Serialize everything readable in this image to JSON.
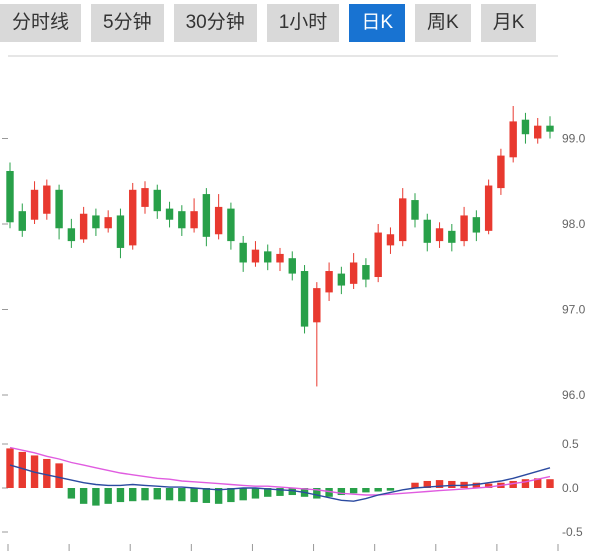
{
  "ui": {
    "accent_color": "#1873d2",
    "tab_background": "#d9d9d9",
    "tab_text_color": "#333333"
  },
  "tabs": {
    "items": [
      {
        "label": "分时线",
        "active": false
      },
      {
        "label": "5分钟",
        "active": false
      },
      {
        "label": "30分钟",
        "active": false
      },
      {
        "label": "1小时",
        "active": false
      },
      {
        "label": "日K",
        "active": true
      },
      {
        "label": "周K",
        "active": false
      },
      {
        "label": "月K",
        "active": false
      }
    ]
  },
  "chart_data": {
    "type": "candlestick",
    "title": "",
    "legend": "none",
    "grid": "ticks-only",
    "colors": {
      "up": "#e8392f",
      "down": "#28a049",
      "dif_line": "#2b4aa0",
      "dea_line": "#e05ce0",
      "axis_tick": "#999999",
      "border_line": "#cccccc",
      "label_text": "#666666"
    },
    "main_pane": {
      "y_axis_side": "right",
      "y_ticks": [
        {
          "label": "99.0",
          "value": 99.0
        },
        {
          "label": "98.0",
          "value": 98.0
        },
        {
          "label": "97.0",
          "value": 97.0
        },
        {
          "label": "96.0",
          "value": 96.0
        }
      ],
      "ylim": [
        95.6,
        99.96
      ],
      "candles_ohlc": [
        [
          98.62,
          98.72,
          97.95,
          98.02
        ],
        [
          98.15,
          98.24,
          97.85,
          97.92
        ],
        [
          98.05,
          98.5,
          98.0,
          98.4
        ],
        [
          98.12,
          98.52,
          98.05,
          98.45
        ],
        [
          98.4,
          98.46,
          97.82,
          97.95
        ],
        [
          97.95,
          98.06,
          97.72,
          97.8
        ],
        [
          97.82,
          98.2,
          97.78,
          98.12
        ],
        [
          98.1,
          98.18,
          97.86,
          97.95
        ],
        [
          97.95,
          98.16,
          97.9,
          98.08
        ],
        [
          98.1,
          98.18,
          97.6,
          97.72
        ],
        [
          97.75,
          98.48,
          97.7,
          98.4
        ],
        [
          98.2,
          98.5,
          98.12,
          98.42
        ],
        [
          98.4,
          98.46,
          98.06,
          98.15
        ],
        [
          98.18,
          98.26,
          97.96,
          98.05
        ],
        [
          98.15,
          98.22,
          97.86,
          97.95
        ],
        [
          97.95,
          98.3,
          97.9,
          98.15
        ],
        [
          98.35,
          98.42,
          97.74,
          97.85
        ],
        [
          97.88,
          98.35,
          97.82,
          98.2
        ],
        [
          98.18,
          98.25,
          97.7,
          97.8
        ],
        [
          97.78,
          97.86,
          97.44,
          97.55
        ],
        [
          97.55,
          97.8,
          97.5,
          97.7
        ],
        [
          97.68,
          97.76,
          97.46,
          97.55
        ],
        [
          97.55,
          97.72,
          97.45,
          97.65
        ],
        [
          97.6,
          97.68,
          97.34,
          97.42
        ],
        [
          97.45,
          97.52,
          96.72,
          96.8
        ],
        [
          96.85,
          97.32,
          96.1,
          97.25
        ],
        [
          97.2,
          97.55,
          97.1,
          97.45
        ],
        [
          97.42,
          97.5,
          97.18,
          97.28
        ],
        [
          97.3,
          97.66,
          97.24,
          97.55
        ],
        [
          97.52,
          97.6,
          97.26,
          97.35
        ],
        [
          97.38,
          98.0,
          97.32,
          97.9
        ],
        [
          97.75,
          97.96,
          97.65,
          97.88
        ],
        [
          97.8,
          98.42,
          97.74,
          98.3
        ],
        [
          98.28,
          98.36,
          97.96,
          98.05
        ],
        [
          98.05,
          98.12,
          97.68,
          97.78
        ],
        [
          97.8,
          98.02,
          97.72,
          97.95
        ],
        [
          97.92,
          98.0,
          97.68,
          97.78
        ],
        [
          97.8,
          98.2,
          97.74,
          98.1
        ],
        [
          98.08,
          98.16,
          97.8,
          97.9
        ],
        [
          97.92,
          98.52,
          97.88,
          98.45
        ],
        [
          98.42,
          98.88,
          98.34,
          98.8
        ],
        [
          98.78,
          99.38,
          98.72,
          99.2
        ],
        [
          99.22,
          99.3,
          98.94,
          99.05
        ],
        [
          99.0,
          99.24,
          98.94,
          99.15
        ],
        [
          99.15,
          99.26,
          99.0,
          99.08
        ]
      ]
    },
    "macd_pane": {
      "y_axis_side": "right",
      "y_ticks": [
        {
          "label": "0.5",
          "value": 0.5
        },
        {
          "label": "0.0",
          "value": 0.0
        },
        {
          "label": "-0.5",
          "value": -0.5
        }
      ],
      "ylim": [
        -0.5,
        0.5
      ],
      "histogram": [
        0.45,
        0.41,
        0.37,
        0.33,
        0.28,
        -0.12,
        -0.18,
        -0.2,
        -0.18,
        -0.16,
        -0.15,
        -0.14,
        -0.13,
        -0.14,
        -0.15,
        -0.16,
        -0.17,
        -0.18,
        -0.16,
        -0.14,
        -0.12,
        -0.1,
        -0.09,
        -0.08,
        -0.1,
        -0.12,
        -0.1,
        -0.08,
        -0.06,
        -0.05,
        -0.04,
        -0.03,
        0.0,
        0.06,
        0.08,
        0.09,
        0.08,
        0.07,
        0.06,
        0.05,
        0.06,
        0.08,
        0.1,
        0.11,
        0.1
      ],
      "dif_line": [
        0.26,
        0.22,
        0.18,
        0.15,
        0.12,
        0.09,
        0.06,
        0.04,
        0.03,
        0.03,
        0.04,
        0.03,
        0.02,
        0.01,
        0.01,
        0.0,
        -0.01,
        -0.02,
        -0.01,
        0.0,
        0.0,
        -0.01,
        -0.02,
        -0.03,
        -0.05,
        -0.08,
        -0.11,
        -0.14,
        -0.15,
        -0.12,
        -0.08,
        -0.05,
        -0.02,
        0.0,
        0.01,
        0.02,
        0.03,
        0.03,
        0.04,
        0.06,
        0.08,
        0.11,
        0.15,
        0.19,
        0.23
      ],
      "dea_line": [
        0.46,
        0.43,
        0.4,
        0.36,
        0.33,
        0.29,
        0.26,
        0.23,
        0.2,
        0.17,
        0.15,
        0.13,
        0.11,
        0.1,
        0.08,
        0.07,
        0.06,
        0.05,
        0.04,
        0.03,
        0.02,
        0.02,
        0.01,
        0.0,
        -0.01,
        -0.02,
        -0.04,
        -0.06,
        -0.07,
        -0.08,
        -0.08,
        -0.07,
        -0.06,
        -0.05,
        -0.04,
        -0.03,
        -0.02,
        -0.01,
        0.0,
        0.01,
        0.03,
        0.05,
        0.07,
        0.1,
        0.13
      ]
    }
  }
}
